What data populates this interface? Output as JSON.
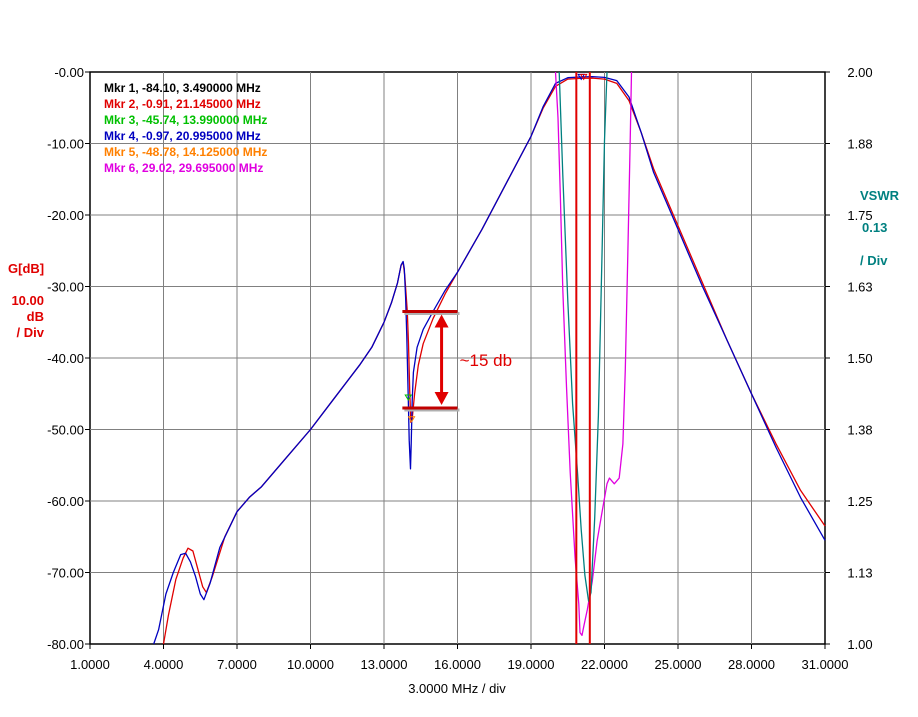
{
  "chart_data": {
    "type": "line",
    "xlabel": "3.0000 MHz / div",
    "xlim": [
      1.0,
      31.0
    ],
    "x_ticks": [
      "1.0000",
      "4.0000",
      "7.0000",
      "10.0000",
      "13.0000",
      "16.0000",
      "19.0000",
      "22.0000",
      "25.0000",
      "28.0000",
      "31.0000"
    ],
    "y_left": {
      "label": "G[dB]",
      "scale_value": "10.00",
      "scale_unit": "dB",
      "scale_per": "/ Div",
      "ylim": [
        -80,
        0
      ],
      "ticks": [
        "-0.00",
        "-10.00",
        "-20.00",
        "-30.00",
        "-40.00",
        "-50.00",
        "-60.00",
        "-70.00",
        "-80.00"
      ],
      "color": "#e00000"
    },
    "y_right": {
      "label": "VSWR",
      "scale_value": "0.13",
      "scale_per": "/ Div",
      "ylim": [
        1.0,
        2.0
      ],
      "ticks": [
        "2.00",
        "1.88",
        "1.75",
        "1.63",
        "1.50",
        "1.38",
        "1.25",
        "1.13",
        "1.00"
      ],
      "color": "#008080"
    },
    "grid": true,
    "markers": [
      {
        "text": "Mkr 1, -84.10, 3.490000 MHz",
        "color": "#000000"
      },
      {
        "text": "Mkr 2, -0.91, 21.145000 MHz",
        "color": "#e00000"
      },
      {
        "text": "Mkr 3, -45.74, 13.990000 MHz",
        "color": "#00c000"
      },
      {
        "text": "Mkr 4, -0.97, 20.995000 MHz",
        "color": "#0000c0"
      },
      {
        "text": "Mkr 5, -48.78, 14.125000 MHz",
        "color": "#ff8000"
      },
      {
        "text": "Mkr 6, 29.02, 29.695000 MHz",
        "color": "#e000e0"
      }
    ],
    "annotation": {
      "text": "~15 db",
      "upper_level_db": -33.5,
      "lower_level_db": -47.0,
      "x_from": 13.75,
      "x_to": 16.0,
      "arrow_x": 15.35
    },
    "series": [
      {
        "name": "G[dB] trace 1",
        "axis": "left",
        "color": "#e00000",
        "points": [
          [
            4.0,
            -80
          ],
          [
            4.2,
            -76
          ],
          [
            4.5,
            -71
          ],
          [
            4.8,
            -68
          ],
          [
            5.0,
            -66.6
          ],
          [
            5.2,
            -67
          ],
          [
            5.4,
            -69.5
          ],
          [
            5.6,
            -72
          ],
          [
            5.75,
            -72.8
          ],
          [
            6.0,
            -70.5
          ],
          [
            6.5,
            -65
          ],
          [
            7.0,
            -61.5
          ],
          [
            7.5,
            -59.5
          ],
          [
            8.0,
            -58
          ],
          [
            9.0,
            -54
          ],
          [
            10.0,
            -50
          ],
          [
            11.0,
            -45.5
          ],
          [
            12.0,
            -41
          ],
          [
            12.5,
            -38.5
          ],
          [
            13.0,
            -35
          ],
          [
            13.3,
            -32.3
          ],
          [
            13.55,
            -29.5
          ],
          [
            13.7,
            -27
          ],
          [
            13.78,
            -26.6
          ],
          [
            13.85,
            -28.5
          ],
          [
            13.95,
            -33.5
          ],
          [
            14.0,
            -38
          ],
          [
            14.05,
            -44.5
          ],
          [
            14.1,
            -49
          ],
          [
            14.15,
            -48.5
          ],
          [
            14.25,
            -45
          ],
          [
            14.4,
            -41
          ],
          [
            14.6,
            -38
          ],
          [
            15.0,
            -34.5
          ],
          [
            15.5,
            -31
          ],
          [
            16.0,
            -28
          ],
          [
            17.0,
            -22
          ],
          [
            18.0,
            -15.5
          ],
          [
            19.0,
            -9
          ],
          [
            19.5,
            -5
          ],
          [
            20.0,
            -2
          ],
          [
            20.5,
            -1.0
          ],
          [
            21.0,
            -0.9
          ],
          [
            21.5,
            -0.85
          ],
          [
            22.0,
            -1.0
          ],
          [
            22.5,
            -1.6
          ],
          [
            23.0,
            -4
          ],
          [
            23.5,
            -8.5
          ],
          [
            24.0,
            -13.5
          ],
          [
            25.0,
            -21.5
          ],
          [
            26.0,
            -29.5
          ],
          [
            27.0,
            -37.5
          ],
          [
            28.0,
            -45
          ],
          [
            29.0,
            -52
          ],
          [
            30.0,
            -58.5
          ],
          [
            31.0,
            -63.5
          ]
        ]
      },
      {
        "name": "G[dB] trace 2",
        "axis": "left",
        "color": "#0000c0",
        "points": [
          [
            3.6,
            -80
          ],
          [
            3.8,
            -78
          ],
          [
            4.1,
            -73
          ],
          [
            4.4,
            -70
          ],
          [
            4.7,
            -67.5
          ],
          [
            4.9,
            -67.3
          ],
          [
            5.1,
            -68.5
          ],
          [
            5.3,
            -70.5
          ],
          [
            5.5,
            -73
          ],
          [
            5.65,
            -73.8
          ],
          [
            5.9,
            -71.5
          ],
          [
            6.3,
            -66.5
          ],
          [
            7.0,
            -61.5
          ],
          [
            7.5,
            -59.5
          ],
          [
            8.0,
            -58
          ],
          [
            9.0,
            -54
          ],
          [
            10.0,
            -50
          ],
          [
            11.0,
            -45.5
          ],
          [
            12.0,
            -41
          ],
          [
            12.5,
            -38.5
          ],
          [
            13.0,
            -35
          ],
          [
            13.3,
            -32.3
          ],
          [
            13.55,
            -29.5
          ],
          [
            13.7,
            -27
          ],
          [
            13.78,
            -26.5
          ],
          [
            13.83,
            -27.5
          ],
          [
            13.88,
            -31.5
          ],
          [
            13.93,
            -37
          ],
          [
            13.97,
            -43
          ],
          [
            14.0,
            -47
          ],
          [
            14.03,
            -51.5
          ],
          [
            14.06,
            -54
          ],
          [
            14.08,
            -55.5
          ],
          [
            14.11,
            -52
          ],
          [
            14.15,
            -46
          ],
          [
            14.2,
            -42
          ],
          [
            14.35,
            -38.5
          ],
          [
            14.6,
            -36
          ],
          [
            15.0,
            -33.5
          ],
          [
            15.5,
            -30.5
          ],
          [
            16.0,
            -28
          ],
          [
            17.0,
            -22
          ],
          [
            18.0,
            -15.5
          ],
          [
            19.0,
            -9
          ],
          [
            19.5,
            -4.8
          ],
          [
            20.0,
            -1.6
          ],
          [
            20.5,
            -0.8
          ],
          [
            21.0,
            -0.7
          ],
          [
            21.5,
            -0.65
          ],
          [
            22.0,
            -0.75
          ],
          [
            22.5,
            -1.2
          ],
          [
            23.0,
            -3.5
          ],
          [
            23.5,
            -8.5
          ],
          [
            24.0,
            -14
          ],
          [
            25.0,
            -22
          ],
          [
            26.0,
            -30
          ],
          [
            27.0,
            -37.5
          ],
          [
            28.0,
            -45
          ],
          [
            29.0,
            -52.5
          ],
          [
            30.0,
            -59.5
          ],
          [
            31.0,
            -65.5
          ]
        ]
      },
      {
        "name": "VSWR trace 1",
        "axis": "right",
        "color": "#e000e0",
        "points": [
          [
            20.0,
            2.0
          ],
          [
            20.1,
            1.92
          ],
          [
            20.2,
            1.78
          ],
          [
            20.3,
            1.62
          ],
          [
            20.45,
            1.45
          ],
          [
            20.6,
            1.3
          ],
          [
            20.8,
            1.15
          ],
          [
            20.95,
            1.07
          ],
          [
            21.0,
            1.02
          ],
          [
            21.08,
            1.015
          ],
          [
            21.15,
            1.03
          ],
          [
            21.3,
            1.06
          ],
          [
            21.5,
            1.11
          ],
          [
            21.7,
            1.18
          ],
          [
            21.9,
            1.23
          ],
          [
            22.1,
            1.28
          ],
          [
            22.2,
            1.29
          ],
          [
            22.4,
            1.28
          ],
          [
            22.6,
            1.29
          ],
          [
            22.75,
            1.35
          ],
          [
            22.85,
            1.48
          ],
          [
            22.95,
            1.68
          ],
          [
            23.05,
            1.88
          ],
          [
            23.1,
            2.0
          ]
        ]
      },
      {
        "name": "VSWR trace 2",
        "axis": "right",
        "color": "#008080",
        "points": [
          [
            20.15,
            2.0
          ],
          [
            20.3,
            1.82
          ],
          [
            20.5,
            1.6
          ],
          [
            20.7,
            1.42
          ],
          [
            20.9,
            1.3
          ],
          [
            21.05,
            1.2
          ],
          [
            21.2,
            1.12
          ],
          [
            21.35,
            1.075
          ],
          [
            21.45,
            1.09
          ],
          [
            21.6,
            1.22
          ],
          [
            21.75,
            1.4
          ],
          [
            21.9,
            1.68
          ],
          [
            22.0,
            1.88
          ],
          [
            22.1,
            2.0
          ]
        ]
      }
    ]
  }
}
